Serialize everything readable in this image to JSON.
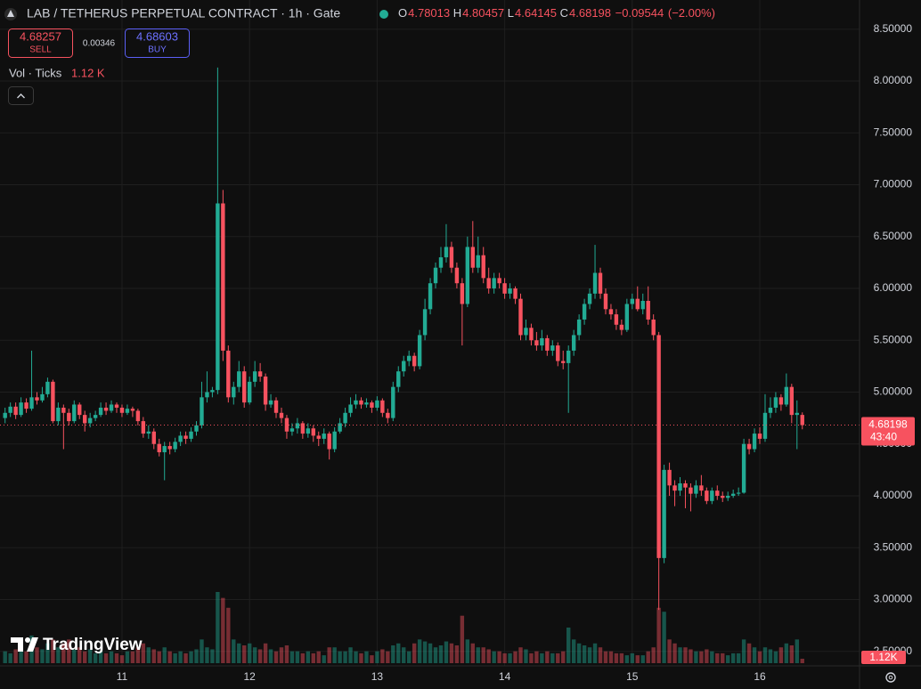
{
  "chart_data": {
    "type": "candlestick",
    "title": "LAB / TETHERUS PERPETUAL CONTRACT · 1h · Gate",
    "ohlc_keys": [
      "O",
      "H",
      "L",
      "C"
    ],
    "change": {
      "value": -0.09544,
      "label": "−0.09544"
    },
    "change_pct": {
      "value": -2.0,
      "label": "(−2.00%)"
    },
    "sell": {
      "price": 4.68257,
      "label": "SELL"
    },
    "spread": 0.00346,
    "buy": {
      "price": 4.68603,
      "label": "BUY"
    },
    "volume_title": "Vol · Ticks",
    "volume_last_label": "1.12 K",
    "volume_axis_label": "1.12K",
    "countdown": "43:40",
    "logo": "TradingView",
    "up_color": "#22ab94",
    "down_color": "#f7525f",
    "grid": true,
    "ylim": [
      2.36,
      8.61
    ],
    "yticks": [
      {
        "value": 8.5,
        "label": "8.50000"
      },
      {
        "value": 8.0,
        "label": "8.00000"
      },
      {
        "value": 7.5,
        "label": "7.50000"
      },
      {
        "value": 7.0,
        "label": "7.00000"
      },
      {
        "value": 6.5,
        "label": "6.50000"
      },
      {
        "value": 6.0,
        "label": "6.00000"
      },
      {
        "value": 5.5,
        "label": "5.50000"
      },
      {
        "value": 5.0,
        "label": "5.00000"
      },
      {
        "value": 4.5,
        "label": "4.50000"
      },
      {
        "value": 4.0,
        "label": "4.00000"
      },
      {
        "value": 3.5,
        "label": "3.50000"
      },
      {
        "value": 3.0,
        "label": "3.00000"
      },
      {
        "value": 2.5,
        "label": "2.50000"
      }
    ],
    "categories": [
      null,
      null,
      null,
      null,
      null,
      null,
      null,
      null,
      null,
      null,
      null,
      null,
      null,
      null,
      null,
      null,
      null,
      null,
      null,
      null,
      null,
      null,
      "11",
      null,
      null,
      null,
      null,
      null,
      null,
      null,
      null,
      null,
      null,
      null,
      null,
      null,
      null,
      null,
      null,
      null,
      null,
      null,
      null,
      null,
      null,
      null,
      "12",
      null,
      null,
      null,
      null,
      null,
      null,
      null,
      null,
      null,
      null,
      null,
      null,
      null,
      null,
      null,
      null,
      null,
      null,
      null,
      null,
      null,
      null,
      null,
      "13",
      null,
      null,
      null,
      null,
      null,
      null,
      null,
      null,
      null,
      null,
      null,
      null,
      null,
      null,
      null,
      null,
      null,
      null,
      null,
      null,
      null,
      null,
      null,
      "14",
      null,
      null,
      null,
      null,
      null,
      null,
      null,
      null,
      null,
      null,
      null,
      null,
      null,
      null,
      null,
      null,
      null,
      null,
      null,
      null,
      null,
      null,
      null,
      "15",
      null,
      null,
      null,
      null,
      null,
      null,
      null,
      null,
      null,
      null,
      null,
      null,
      null,
      null,
      null,
      null,
      null,
      null,
      null,
      null,
      null,
      null,
      null,
      "16",
      null,
      null,
      null,
      null,
      null,
      null,
      null,
      null
    ],
    "ohlc": [
      [
        4.75,
        4.85,
        4.7,
        4.8
      ],
      [
        4.8,
        4.9,
        4.76,
        4.86
      ],
      [
        4.86,
        4.9,
        4.74,
        4.78
      ],
      [
        4.78,
        4.95,
        4.76,
        4.9
      ],
      [
        4.9,
        4.94,
        4.8,
        4.84
      ],
      [
        4.84,
        5.4,
        4.82,
        4.95
      ],
      [
        4.95,
        5.0,
        4.88,
        4.92
      ],
      [
        4.92,
        5.05,
        4.9,
        4.98
      ],
      [
        4.98,
        5.14,
        4.95,
        5.1
      ],
      [
        5.1,
        5.12,
        4.7,
        4.72
      ],
      [
        4.72,
        4.9,
        4.68,
        4.85
      ],
      [
        4.85,
        4.88,
        4.45,
        4.8
      ],
      [
        4.8,
        4.84,
        4.68,
        4.72
      ],
      [
        4.72,
        4.92,
        4.7,
        4.88
      ],
      [
        4.88,
        4.9,
        4.74,
        4.78
      ],
      [
        4.78,
        4.82,
        4.62,
        4.7
      ],
      [
        4.7,
        4.8,
        4.66,
        4.75
      ],
      [
        4.75,
        4.82,
        4.72,
        4.78
      ],
      [
        4.78,
        4.9,
        4.76,
        4.85
      ],
      [
        4.85,
        4.9,
        4.78,
        4.82
      ],
      [
        4.82,
        4.92,
        4.8,
        4.88
      ],
      [
        4.88,
        4.9,
        4.8,
        4.85
      ],
      [
        4.85,
        4.88,
        4.76,
        4.8
      ],
      [
        4.8,
        4.88,
        4.78,
        4.84
      ],
      [
        4.84,
        4.86,
        4.76,
        4.82
      ],
      [
        4.82,
        4.84,
        4.68,
        4.72
      ],
      [
        4.72,
        4.76,
        4.56,
        4.6
      ],
      [
        4.6,
        4.68,
        4.55,
        4.62
      ],
      [
        4.62,
        4.65,
        4.45,
        4.5
      ],
      [
        4.5,
        4.55,
        4.38,
        4.42
      ],
      [
        4.42,
        4.52,
        4.15,
        4.48
      ],
      [
        4.48,
        4.52,
        4.4,
        4.45
      ],
      [
        4.45,
        4.56,
        4.42,
        4.52
      ],
      [
        4.52,
        4.62,
        4.48,
        4.58
      ],
      [
        4.58,
        4.62,
        4.5,
        4.55
      ],
      [
        4.55,
        4.66,
        4.52,
        4.62
      ],
      [
        4.62,
        4.72,
        4.58,
        4.68
      ],
      [
        4.68,
        5.1,
        4.65,
        4.95
      ],
      [
        4.95,
        5.2,
        4.9,
        5.0
      ],
      [
        5.0,
        5.05,
        4.95,
        5.02
      ],
      [
        5.02,
        8.13,
        4.98,
        6.82
      ],
      [
        6.82,
        6.95,
        5.3,
        5.4
      ],
      [
        5.4,
        5.45,
        4.9,
        4.95
      ],
      [
        4.95,
        5.1,
        4.88,
        5.05
      ],
      [
        5.05,
        5.3,
        5.0,
        5.2
      ],
      [
        5.2,
        5.25,
        4.85,
        4.9
      ],
      [
        4.9,
        5.15,
        4.88,
        5.1
      ],
      [
        5.1,
        5.3,
        5.05,
        5.2
      ],
      [
        5.2,
        5.28,
        5.1,
        5.15
      ],
      [
        5.15,
        5.18,
        4.82,
        4.88
      ],
      [
        4.88,
        4.98,
        4.85,
        4.92
      ],
      [
        4.92,
        4.95,
        4.75,
        4.8
      ],
      [
        4.8,
        4.85,
        4.7,
        4.75
      ],
      [
        4.75,
        4.78,
        4.55,
        4.62
      ],
      [
        4.62,
        4.7,
        4.58,
        4.65
      ],
      [
        4.65,
        4.75,
        4.6,
        4.7
      ],
      [
        4.7,
        4.72,
        4.55,
        4.6
      ],
      [
        4.6,
        4.7,
        4.56,
        4.65
      ],
      [
        4.65,
        4.68,
        4.52,
        4.58
      ],
      [
        4.58,
        4.62,
        4.48,
        4.55
      ],
      [
        4.55,
        4.65,
        4.5,
        4.6
      ],
      [
        4.6,
        4.62,
        4.35,
        4.45
      ],
      [
        4.45,
        4.66,
        4.42,
        4.62
      ],
      [
        4.62,
        4.75,
        4.6,
        4.7
      ],
      [
        4.7,
        4.85,
        4.66,
        4.8
      ],
      [
        4.8,
        4.95,
        4.76,
        4.88
      ],
      [
        4.88,
        4.98,
        4.84,
        4.92
      ],
      [
        4.92,
        4.95,
        4.84,
        4.88
      ],
      [
        4.88,
        4.94,
        4.85,
        4.9
      ],
      [
        4.9,
        4.92,
        4.8,
        4.85
      ],
      [
        4.85,
        4.96,
        4.82,
        4.92
      ],
      [
        4.92,
        4.94,
        4.76,
        4.8
      ],
      [
        4.8,
        4.84,
        4.7,
        4.75
      ],
      [
        4.75,
        5.1,
        4.72,
        5.05
      ],
      [
        5.05,
        5.25,
        5.0,
        5.2
      ],
      [
        5.2,
        5.35,
        5.15,
        5.3
      ],
      [
        5.3,
        5.4,
        5.25,
        5.35
      ],
      [
        5.35,
        5.38,
        5.2,
        5.25
      ],
      [
        5.25,
        5.6,
        5.22,
        5.55
      ],
      [
        5.55,
        5.9,
        5.5,
        5.8
      ],
      [
        5.8,
        6.1,
        5.75,
        6.05
      ],
      [
        6.05,
        6.25,
        6.0,
        6.2
      ],
      [
        6.2,
        6.4,
        6.15,
        6.3
      ],
      [
        6.3,
        6.62,
        6.25,
        6.4
      ],
      [
        6.4,
        6.45,
        6.15,
        6.2
      ],
      [
        6.2,
        6.25,
        6.0,
        6.05
      ],
      [
        6.05,
        6.1,
        5.45,
        5.85
      ],
      [
        5.85,
        6.5,
        5.82,
        6.4
      ],
      [
        6.4,
        6.65,
        6.15,
        6.2
      ],
      [
        6.2,
        6.5,
        6.15,
        6.32
      ],
      [
        6.32,
        6.4,
        6.05,
        6.1
      ],
      [
        6.1,
        6.2,
        5.95,
        6.0
      ],
      [
        6.0,
        6.15,
        5.95,
        6.1
      ],
      [
        6.1,
        6.15,
        6.0,
        6.05
      ],
      [
        6.05,
        6.1,
        5.9,
        5.95
      ],
      [
        5.95,
        6.05,
        5.9,
        6.0
      ],
      [
        6.0,
        6.02,
        5.85,
        5.9
      ],
      [
        5.9,
        5.95,
        5.5,
        5.55
      ],
      [
        5.55,
        5.7,
        5.5,
        5.62
      ],
      [
        5.62,
        5.66,
        5.45,
        5.5
      ],
      [
        5.5,
        5.58,
        5.4,
        5.45
      ],
      [
        5.45,
        5.6,
        5.4,
        5.52
      ],
      [
        5.52,
        5.55,
        5.35,
        5.4
      ],
      [
        5.4,
        5.5,
        5.35,
        5.45
      ],
      [
        5.45,
        5.48,
        5.25,
        5.3
      ],
      [
        5.3,
        5.4,
        5.22,
        5.28
      ],
      [
        5.28,
        5.45,
        4.8,
        5.4
      ],
      [
        5.4,
        5.6,
        5.35,
        5.55
      ],
      [
        5.55,
        5.75,
        5.5,
        5.7
      ],
      [
        5.7,
        5.9,
        5.65,
        5.85
      ],
      [
        5.85,
        6.0,
        5.8,
        5.95
      ],
      [
        5.95,
        6.42,
        5.9,
        6.15
      ],
      [
        6.15,
        6.2,
        5.9,
        5.95
      ],
      [
        5.95,
        6.0,
        5.75,
        5.8
      ],
      [
        5.8,
        5.85,
        5.7,
        5.75
      ],
      [
        5.75,
        5.8,
        5.6,
        5.65
      ],
      [
        5.65,
        5.7,
        5.55,
        5.6
      ],
      [
        5.6,
        5.9,
        5.58,
        5.85
      ],
      [
        5.85,
        5.95,
        5.8,
        5.9
      ],
      [
        5.9,
        6.02,
        5.78,
        5.8
      ],
      [
        5.8,
        5.95,
        5.75,
        5.88
      ],
      [
        5.88,
        6.02,
        5.65,
        5.7
      ],
      [
        5.7,
        5.75,
        5.5,
        5.55
      ],
      [
        5.55,
        5.58,
        2.9,
        3.4
      ],
      [
        3.4,
        4.3,
        3.35,
        4.25
      ],
      [
        4.25,
        4.32,
        4.0,
        4.1
      ],
      [
        4.1,
        4.15,
        3.9,
        4.05
      ],
      [
        4.05,
        4.18,
        4.0,
        4.12
      ],
      [
        4.12,
        4.15,
        3.88,
        4.08
      ],
      [
        4.08,
        4.12,
        3.85,
        4.02
      ],
      [
        4.02,
        4.15,
        3.98,
        4.1
      ],
      [
        4.1,
        4.2,
        4.0,
        4.05
      ],
      [
        4.05,
        4.08,
        3.92,
        3.95
      ],
      [
        3.95,
        4.08,
        3.92,
        4.05
      ],
      [
        4.05,
        4.1,
        3.96,
        4.0
      ],
      [
        4.0,
        4.04,
        3.94,
        3.98
      ],
      [
        3.98,
        4.04,
        3.95,
        4.0
      ],
      [
        4.0,
        4.06,
        3.98,
        4.02
      ],
      [
        4.02,
        4.08,
        4.0,
        4.03
      ],
      [
        4.03,
        4.55,
        4.02,
        4.5
      ],
      [
        4.5,
        4.55,
        4.4,
        4.45
      ],
      [
        4.45,
        4.65,
        4.42,
        4.6
      ],
      [
        4.6,
        4.66,
        4.5,
        4.55
      ],
      [
        4.55,
        4.98,
        4.52,
        4.8
      ],
      [
        4.8,
        4.95,
        4.75,
        4.85
      ],
      [
        4.85,
        5.0,
        4.8,
        4.95
      ],
      [
        4.95,
        4.98,
        4.82,
        4.88
      ],
      [
        4.88,
        5.18,
        4.86,
        5.05
      ],
      [
        5.05,
        5.08,
        4.7,
        4.78
      ],
      [
        4.78,
        4.92,
        4.45,
        4.8
      ],
      [
        4.78013,
        4.80457,
        4.64145,
        4.68198
      ]
    ],
    "volumes": [
      3,
      2.5,
      3.5,
      4,
      3,
      7,
      4,
      3.5,
      5,
      6,
      4,
      5,
      6,
      3.5,
      4,
      3,
      3.5,
      2.5,
      3,
      2.5,
      3,
      2.5,
      2,
      3,
      3,
      4,
      5,
      4,
      3.5,
      3,
      4,
      3,
      2.5,
      3,
      2.5,
      3,
      3.5,
      6,
      4,
      3.5,
      18,
      16.5,
      14,
      6,
      5,
      4.5,
      5,
      4,
      3.5,
      5,
      3.5,
      3,
      4,
      4.5,
      3,
      3,
      2.5,
      3,
      2.5,
      3,
      2,
      4,
      4,
      3,
      3,
      4,
      3,
      2.5,
      3,
      2,
      3,
      3.5,
      3,
      4.5,
      5,
      4,
      3,
      5,
      6,
      5.5,
      5,
      4,
      4.5,
      5.5,
      5,
      4.5,
      12,
      6,
      5,
      4,
      4,
      3.5,
      3,
      3,
      2.5,
      2.5,
      3,
      4,
      3.5,
      2.5,
      3,
      2.5,
      3,
      2.5,
      2.5,
      3,
      9,
      6,
      5,
      4.5,
      4,
      5,
      4,
      3,
      3,
      2.5,
      2.5,
      2,
      2.5,
      2,
      2,
      3,
      4,
      14,
      13,
      6,
      5,
      4,
      4,
      3.5,
      3,
      3,
      3.5,
      3,
      2.5,
      2.5,
      2,
      2.5,
      2.5,
      6,
      5,
      4,
      3,
      4,
      3.5,
      3,
      4,
      5,
      4.5,
      6,
      1.12
    ]
  }
}
